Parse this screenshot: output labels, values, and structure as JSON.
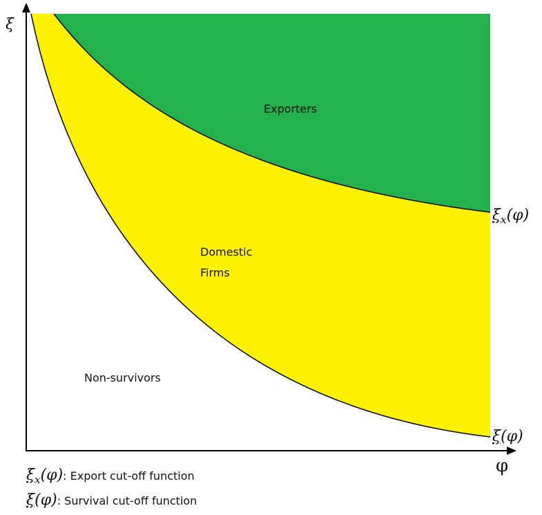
{
  "axes": {
    "y_label": "ξ",
    "x_label": "φ"
  },
  "regions": {
    "exporters": "Exporters",
    "domestic": [
      "Domestic",
      "Firms"
    ],
    "non_survivors": "Non-survivors"
  },
  "curves": [
    {
      "symbol": "ξ",
      "subscript": "x",
      "argument": "(φ)",
      "description": ": Export cut-off function"
    },
    {
      "symbol": "ξ",
      "argument": "(φ)",
      "description": ": Survival cut-off function"
    }
  ]
}
